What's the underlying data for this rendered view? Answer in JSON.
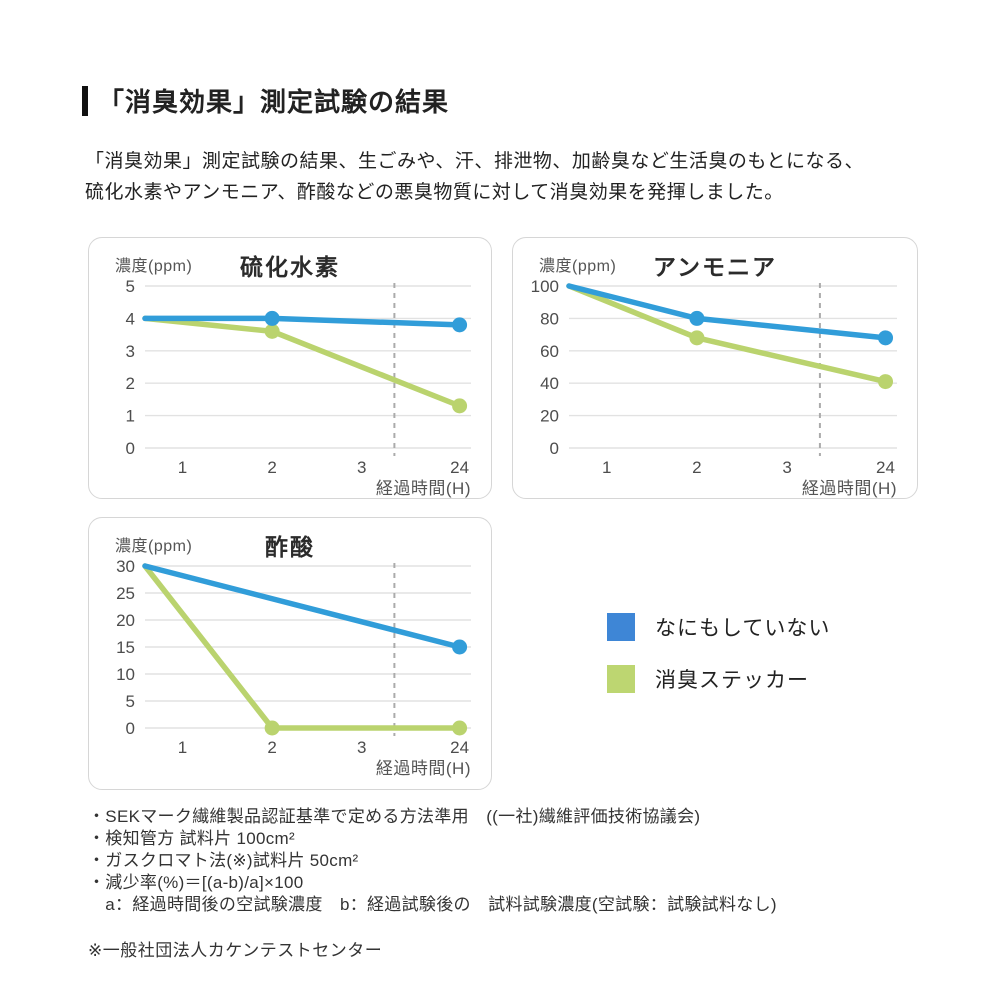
{
  "page": {
    "title": "「消臭効果」測定試験の結果",
    "intro_line1": "「消臭効果」測定試験の結果、生ごみや、汗、排泄物、加齢臭など生活臭のもとになる、",
    "intro_line2": "硫化水素やアンモニア、酢酸などの悪臭物質に対して消臭効果を発揮しました。"
  },
  "chart_data": [
    {
      "type": "line",
      "title": "硫化水素",
      "ylabel": "濃度(ppm)",
      "xlabel": "経過時間(H)",
      "ylim": [
        0,
        5
      ],
      "y_ticks": [
        5,
        4,
        3,
        2,
        1,
        0
      ],
      "x_ticks": [
        "1",
        "2",
        "3",
        "24"
      ],
      "grid": true,
      "dashed_guide_between": [
        "3",
        "24"
      ],
      "series": [
        {
          "name": "なにもしていない",
          "color": "#319dd9",
          "x": [
            0,
            2,
            24
          ],
          "values": [
            4,
            4,
            3.8
          ],
          "markers": [
            2,
            24
          ]
        },
        {
          "name": "消臭ステッカー",
          "color": "#bad36e",
          "x": [
            0,
            2,
            24
          ],
          "values": [
            4,
            3.6,
            1.3
          ],
          "markers": [
            2,
            24
          ]
        }
      ]
    },
    {
      "type": "line",
      "title": "アンモニア",
      "ylabel": "濃度(ppm)",
      "xlabel": "経過時間(H)",
      "ylim": [
        0,
        100
      ],
      "y_ticks": [
        100,
        80,
        60,
        40,
        20,
        0
      ],
      "x_ticks": [
        "1",
        "2",
        "3",
        "24"
      ],
      "grid": true,
      "dashed_guide_between": [
        "3",
        "24"
      ],
      "series": [
        {
          "name": "なにもしていない",
          "color": "#319dd9",
          "x": [
            0,
            2,
            24
          ],
          "values": [
            100,
            80,
            68
          ],
          "markers": [
            2,
            24
          ]
        },
        {
          "name": "消臭ステッカー",
          "color": "#bad36e",
          "x": [
            0,
            2,
            24
          ],
          "values": [
            100,
            68,
            41
          ],
          "markers": [
            2,
            24
          ]
        }
      ]
    },
    {
      "type": "line",
      "title": "酢酸",
      "ylabel": "濃度(ppm)",
      "xlabel": "経過時間(H)",
      "ylim": [
        0,
        30
      ],
      "y_ticks": [
        30,
        25,
        20,
        15,
        10,
        5,
        0
      ],
      "x_ticks": [
        "1",
        "2",
        "3",
        "24"
      ],
      "grid": true,
      "dashed_guide_between": [
        "3",
        "24"
      ],
      "series": [
        {
          "name": "なにもしていない",
          "color": "#319dd9",
          "x": [
            0,
            24
          ],
          "values": [
            30,
            15
          ],
          "markers": [
            24
          ]
        },
        {
          "name": "消臭ステッカー",
          "color": "#bad36e",
          "x": [
            0,
            2,
            24
          ],
          "values": [
            30,
            0,
            0
          ],
          "markers": [
            2,
            24
          ]
        }
      ]
    }
  ],
  "legend": {
    "items": [
      {
        "label": "なにもしていない",
        "color": "#3e86d6"
      },
      {
        "label": "消臭ステッカー",
        "color": "#bdd671"
      }
    ]
  },
  "footnotes": {
    "lines": [
      "・SEKマーク繊維製品認証基準で定める方法準用　((一社)繊維評価技術協議会)",
      "・検知管方 試料片 100cm²",
      "・ガスクロマト法(※)試料片 50cm²",
      "・減少率(%)＝[(a-b)/a]×100",
      "　a：経過時間後の空試験濃度　b：経過試験後の　試料試験濃度(空試験：試験試料なし)"
    ],
    "agency_note": "※一般社団法人カケンテストセンター"
  }
}
